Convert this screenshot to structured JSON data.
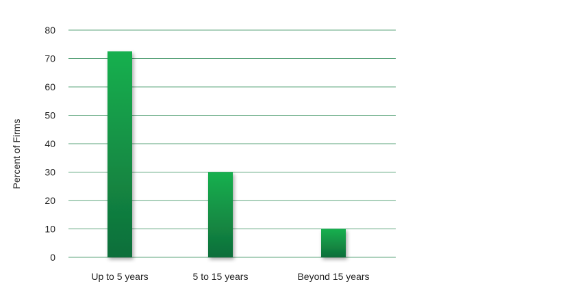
{
  "chart_data": {
    "type": "bar",
    "categories": [
      "Up to 5 years",
      "5 to 15 years",
      "Beyond 15 years"
    ],
    "values": [
      72.5,
      30,
      10
    ],
    "ylabel": "Percent of Firms",
    "xlabel": "",
    "ylim": [
      0,
      80
    ],
    "yticks": [
      0,
      10,
      20,
      30,
      40,
      50,
      60,
      70,
      80
    ],
    "grid": true,
    "colors": {
      "bar_top": "#18b04f",
      "bar_bottom": "#0f6e3a",
      "grid": "#5aa37a",
      "text": "#1f1f1f"
    }
  }
}
